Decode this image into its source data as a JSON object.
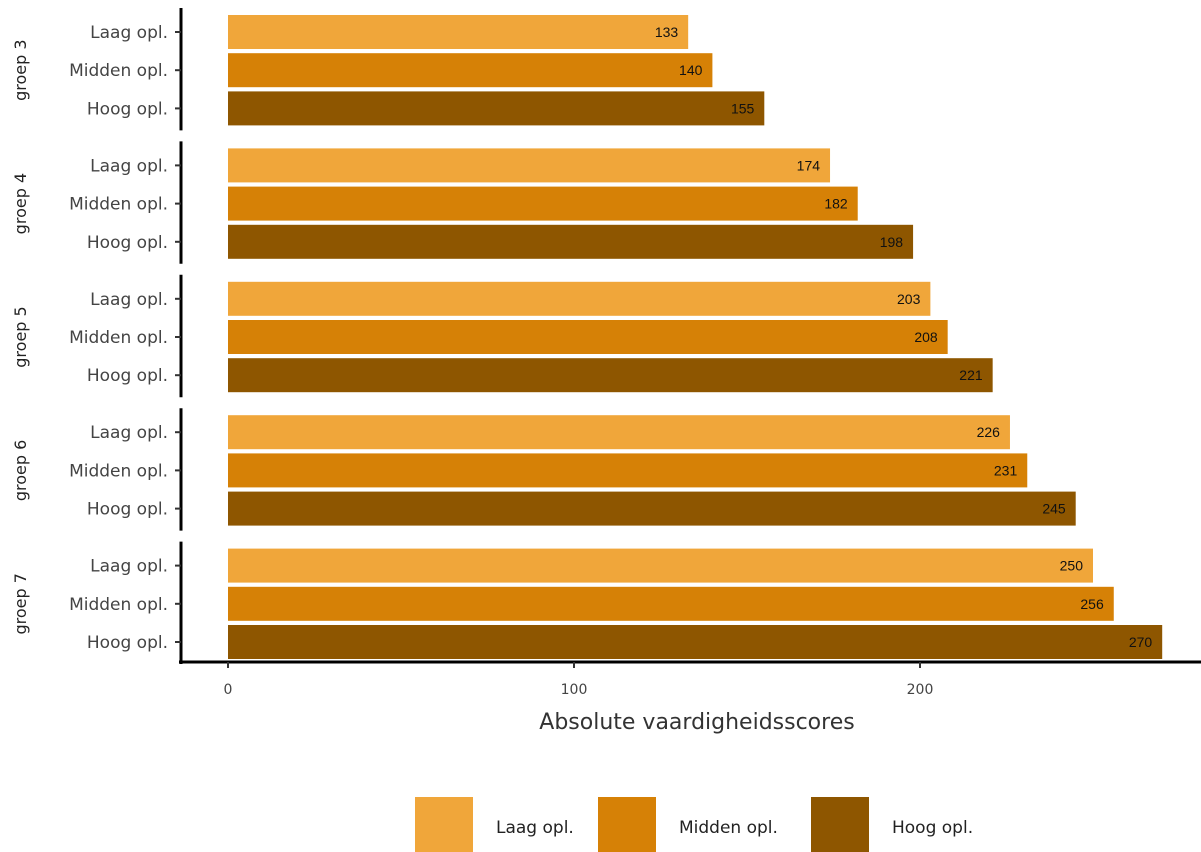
{
  "chart_data": {
    "type": "bar",
    "orientation": "horizontal",
    "xlabel": "Absolute vaardigheidsscores",
    "xlim": [
      0,
      280
    ],
    "xticks": [
      0,
      100,
      200
    ],
    "grid": false,
    "legend_position": "bottom",
    "categories": [
      "Laag opl.",
      "Midden opl.",
      "Hoog opl."
    ],
    "groups": [
      {
        "label": "groep 3",
        "values": [
          133,
          140,
          155
        ]
      },
      {
        "label": "groep 4",
        "values": [
          174,
          182,
          198
        ]
      },
      {
        "label": "groep 5",
        "values": [
          203,
          208,
          221
        ]
      },
      {
        "label": "groep 6",
        "values": [
          226,
          231,
          245
        ]
      },
      {
        "label": "groep 7",
        "values": [
          250,
          256,
          270
        ]
      }
    ],
    "colors": {
      "Laag opl.": "#F0A63A",
      "Midden opl.": "#D68106",
      "Hoog opl.": "#8E5600"
    }
  },
  "legend": {
    "items": [
      {
        "label": "Laag opl.",
        "color": "#F0A63A"
      },
      {
        "label": "Midden opl.",
        "color": "#D68106"
      },
      {
        "label": "Hoog opl.",
        "color": "#8E5600"
      }
    ]
  }
}
